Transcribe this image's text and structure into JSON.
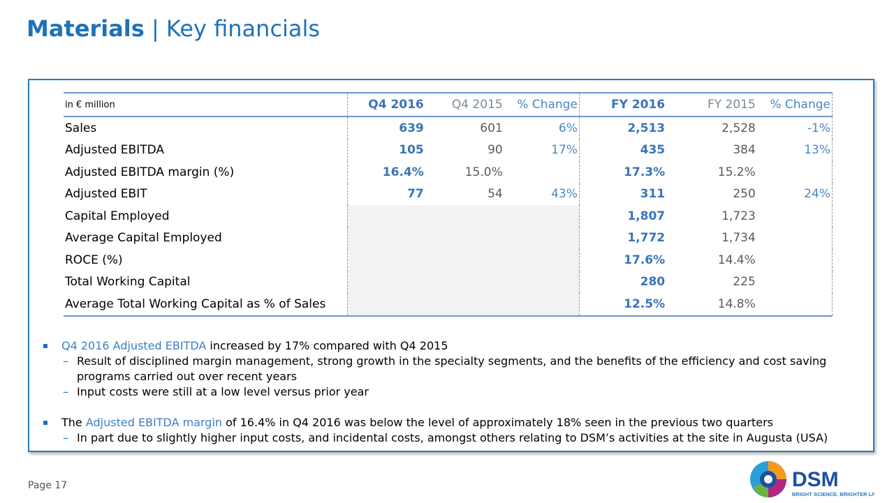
{
  "title": {
    "bold": "Materials",
    "sep": " | ",
    "rest": "Key financials"
  },
  "table": {
    "headers": [
      "in € million",
      "Q4 2016",
      "Q4 2015",
      "% Change",
      "FY 2016",
      "FY 2015",
      "% Change"
    ],
    "rows": [
      [
        "Sales",
        "639",
        "601",
        "6%",
        "2,513",
        "2,528",
        "-1%"
      ],
      [
        "Adjusted EBITDA",
        "105",
        "90",
        "17%",
        "435",
        "384",
        "13%"
      ],
      [
        "Adjusted EBITDA margin (%)",
        "16.4%",
        "15.0%",
        "",
        "17.3%",
        "15.2%",
        ""
      ],
      [
        "Adjusted EBIT",
        "77",
        "54",
        "43%",
        "311",
        "250",
        "24%"
      ],
      [
        "Capital Employed",
        "",
        "",
        "",
        "1,807",
        "1,723",
        ""
      ],
      [
        "Average Capital Employed",
        "",
        "",
        "",
        "1,772",
        "1,734",
        ""
      ],
      [
        "ROCE (%)",
        "",
        "",
        "",
        "17.6%",
        "14.4%",
        ""
      ],
      [
        "Total Working Capital",
        "",
        "",
        "",
        "280",
        "225",
        ""
      ],
      [
        "Average Total Working Capital as % of Sales",
        "",
        "",
        "",
        "12.5%",
        "14.8%",
        ""
      ]
    ]
  },
  "bullets": [
    {
      "highlight": "Q4 2016 Adjusted EBITDA",
      "prefix": "",
      "text": " increased by 17% compared with Q4 2015",
      "subs": [
        "Result of disciplined margin management, strong growth in the specialty segments, and the benefits of the efficiency and cost saving programs carried out over recent years",
        "Input costs were still at a low level versus prior year"
      ]
    },
    {
      "prefix": "The ",
      "highlight": "Adjusted EBITDA margin",
      "text": " of 16.4% in Q4 2016 was below the level of approximately 18% seen in the previous two quarters",
      "subs": [
        "In part due to slightly higher input costs, and incidental costs, amongst others relating to DSM’s activities at the site in Augusta (USA)"
      ]
    }
  ],
  "footer": {
    "page": "Page 17"
  },
  "logo": {
    "name": "DSM",
    "tagline": "BRIGHT SCIENCE. BRIGHTER LIVING."
  },
  "colors": {
    "accent": "#1e72b8"
  }
}
